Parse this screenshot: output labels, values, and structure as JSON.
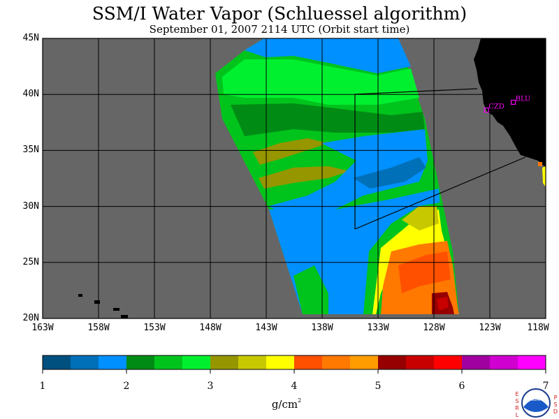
{
  "figure": {
    "title": "SSM/I Water Vapor (Schluessel algorithm)",
    "subtitle": "September 01, 2007  2114 UTC  (Orbit start time)"
  },
  "map": {
    "lat_labels": [
      "45N",
      "40N",
      "35N",
      "30N",
      "25N",
      "20N"
    ],
    "lon_labels": [
      "163W",
      "158W",
      "153W",
      "148W",
      "143W",
      "138W",
      "133W",
      "128W",
      "123W",
      "118W"
    ],
    "stations": [
      {
        "id": "CZD",
        "lon": -123.3,
        "lat": 38.6
      },
      {
        "id": "BLU",
        "lon": -120.9,
        "lat": 39.3
      }
    ],
    "colors": {
      "ocean_background": "#666666",
      "land": "#000000",
      "station_marker": "#ff00ff",
      "gridline": "#000000"
    }
  },
  "colorbar": {
    "tick_labels": [
      "1",
      "2",
      "3",
      "4",
      "5",
      "6",
      "7"
    ],
    "units_main": "g/cm",
    "units_super": "2",
    "colors": [
      "#00507f",
      "#0070b8",
      "#0090ff",
      "#008c14",
      "#00c41c",
      "#00f030",
      "#969600",
      "#c8c800",
      "#ffff00",
      "#ff5000",
      "#ff7800",
      "#ff9c00",
      "#960000",
      "#c80000",
      "#ff0000",
      "#a000a0",
      "#d000d0",
      "#ff00ff"
    ]
  },
  "logo": {
    "left_letters": [
      "E",
      "S",
      "R",
      "L"
    ],
    "right_letters": [
      "P",
      "S",
      "D"
    ],
    "emblem_text": "NOAA"
  }
}
